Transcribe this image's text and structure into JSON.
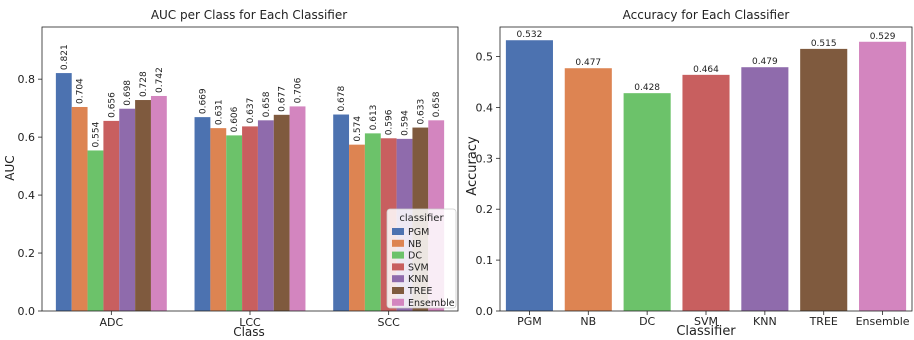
{
  "chart_data": [
    {
      "type": "bar",
      "title": "AUC per Class for Each Classifier",
      "xlabel": "Class",
      "ylabel": "AUC",
      "ylim": [
        0,
        0.98
      ],
      "yticks": [
        "0.0",
        "0.2",
        "0.4",
        "0.6",
        "0.8"
      ],
      "categories": [
        "ADC",
        "LCC",
        "SCC"
      ],
      "series": [
        {
          "name": "PGM",
          "color": "#4c72b0",
          "values": [
            0.821,
            0.669,
            0.678
          ],
          "labels": [
            "0.821",
            "0.669",
            "0.678"
          ]
        },
        {
          "name": "NB",
          "color": "#dd8452",
          "values": [
            0.704,
            0.631,
            0.574
          ],
          "labels": [
            "0.704",
            "0.631",
            "0.574"
          ]
        },
        {
          "name": "DC",
          "color": "#6cc26a",
          "values": [
            0.554,
            0.606,
            0.613
          ],
          "labels": [
            "0.554",
            "0.606",
            "0.613"
          ]
        },
        {
          "name": "SVM",
          "color": "#c85f5f",
          "values": [
            0.656,
            0.637,
            0.596
          ],
          "labels": [
            "0.656",
            "0.637",
            "0.596"
          ]
        },
        {
          "name": "KNN",
          "color": "#8f6bac",
          "values": [
            0.698,
            0.658,
            0.594
          ],
          "labels": [
            "0.698",
            "0.658",
            "0.594"
          ]
        },
        {
          "name": "TREE",
          "color": "#7f5a3e",
          "values": [
            0.728,
            0.677,
            0.633
          ],
          "labels": [
            "0.728",
            "0.677",
            "0.633"
          ]
        },
        {
          "name": "Ensemble",
          "color": "#d385bf",
          "values": [
            0.742,
            0.706,
            0.658
          ],
          "labels": [
            "0.742",
            "0.706",
            "0.658"
          ]
        }
      ],
      "legend": {
        "title": "classifier",
        "placement": "lower-right"
      },
      "grid": false
    },
    {
      "type": "bar",
      "title": "Accuracy for Each Classifier",
      "xlabel": "Classifier",
      "ylabel": "Accuracy",
      "ylim": [
        0,
        0.558
      ],
      "yticks": [
        "0.0",
        "0.1",
        "0.2",
        "0.3",
        "0.4",
        "0.5"
      ],
      "categories": [
        "PGM",
        "NB",
        "DC",
        "SVM",
        "KNN",
        "TREE",
        "Ensemble"
      ],
      "values": [
        0.532,
        0.477,
        0.428,
        0.464,
        0.479,
        0.515,
        0.529
      ],
      "labels": [
        "0.532",
        "0.477",
        "0.428",
        "0.464",
        "0.479",
        "0.515",
        "0.529"
      ],
      "colors": [
        "#4c72b0",
        "#dd8452",
        "#6cc26a",
        "#c85f5f",
        "#8f6bac",
        "#7f5a3e",
        "#d385bf"
      ],
      "grid": false
    }
  ]
}
